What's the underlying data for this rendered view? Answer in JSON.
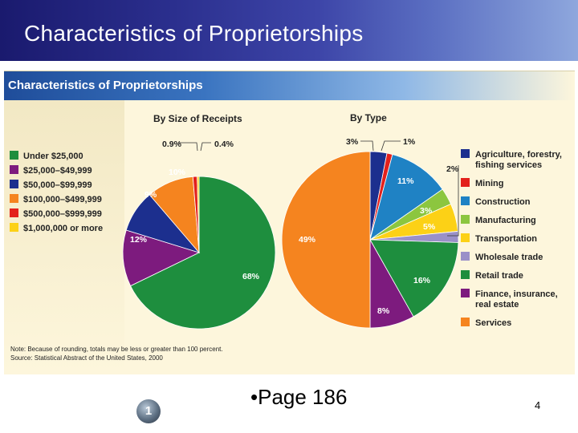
{
  "slide": {
    "title": "Characteristics of Proprietorships",
    "page_reference": "•Page 186",
    "page_number": "4",
    "badge_number": "1"
  },
  "colors": {
    "green": "#1e8e3e",
    "purple": "#7d1b7e",
    "navy": "#1c2f8e",
    "orange": "#f5841f",
    "red": "#e3211c",
    "yellow": "#fcd116",
    "blue": "#1f82c4",
    "lightgreen": "#8cc63f",
    "lavender": "#9a90c8"
  },
  "footer": {
    "note": "Note: Because of rounding, totals may be less or greater than 100 percent.",
    "source": "Source: Statistical Abstract of the United States, 2000"
  },
  "chart_data": [
    {
      "type": "pie",
      "title": "Characteristics of Proprietorships",
      "subtitle": "By Size of Receipts",
      "categories": [
        "Under $25,000",
        "$25,000–$49,999",
        "$50,000–$99,999",
        "$100,000–$499,999",
        "$500,000–$999,999",
        "$1,000,000 or more"
      ],
      "values": [
        68,
        12,
        9,
        10,
        0.9,
        0.4
      ],
      "labels": [
        "68%",
        "12%",
        "9%",
        "10%",
        "0.9%",
        "0.4%"
      ],
      "colors": [
        "#1e8e3e",
        "#7d1b7e",
        "#1c2f8e",
        "#f5841f",
        "#e3211c",
        "#fcd116"
      ],
      "legend": "left"
    },
    {
      "type": "pie",
      "title": "By Type",
      "categories": [
        "Agriculture, forestry, fishing services",
        "Mining",
        "Construction",
        "Manufacturing",
        "Transportation",
        "Wholesale trade",
        "Retail trade",
        "Finance, insurance, real estate",
        "Services"
      ],
      "legend_lines": [
        [
          "Agriculture, forestry,",
          "fishing services"
        ],
        [
          "Mining"
        ],
        [
          "Construction"
        ],
        [
          "Manufacturing"
        ],
        [
          "Transportation"
        ],
        [
          "Wholesale trade"
        ],
        [
          "Retail trade"
        ],
        [
          "Finance, insurance,",
          "real estate"
        ],
        [
          "Services"
        ]
      ],
      "values": [
        3,
        1,
        11,
        3,
        5,
        2,
        16,
        8,
        49
      ],
      "labels": [
        "3%",
        "1%",
        "11%",
        "3%",
        "5%",
        "2%",
        "16%",
        "8%",
        "49%"
      ],
      "colors": [
        "#1c2f8e",
        "#e3211c",
        "#1f82c4",
        "#8cc63f",
        "#fcd116",
        "#9a90c8",
        "#1e8e3e",
        "#7d1b7e",
        "#f5841f"
      ],
      "legend": "right"
    }
  ]
}
